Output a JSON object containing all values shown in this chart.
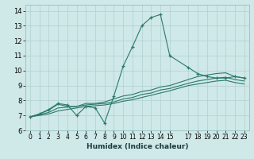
{
  "xlabel": "Humidex (Indice chaleur)",
  "xlim": [
    -0.5,
    23.5
  ],
  "ylim": [
    6,
    14.4
  ],
  "yticks": [
    6,
    7,
    8,
    9,
    10,
    11,
    12,
    13,
    14
  ],
  "xticks": [
    0,
    1,
    2,
    3,
    4,
    5,
    6,
    7,
    8,
    9,
    10,
    11,
    12,
    13,
    14,
    15,
    17,
    18,
    19,
    20,
    21,
    22,
    23
  ],
  "xtick_labels": [
    "0",
    "1",
    "2",
    "3",
    "4",
    "5",
    "6",
    "7",
    "8",
    "9",
    "10",
    "11",
    "12",
    "13",
    "14",
    "15",
    "17",
    "18",
    "19",
    "20",
    "21",
    "22",
    "23"
  ],
  "bg_color": "#cfe8e8",
  "grid_color": "#b0d0d0",
  "line_color": "#2a7a6a",
  "series": [
    {
      "x": [
        0,
        1,
        2,
        3,
        4,
        5,
        6,
        7,
        8,
        9,
        10,
        11,
        12,
        13,
        14,
        15,
        17,
        18,
        19,
        20,
        21,
        22,
        23
      ],
      "y": [
        6.9,
        7.1,
        7.4,
        7.8,
        7.7,
        7.0,
        7.6,
        7.5,
        6.5,
        8.3,
        10.3,
        11.6,
        13.0,
        13.55,
        13.75,
        11.0,
        10.2,
        9.8,
        9.6,
        9.5,
        9.5,
        9.6,
        9.5
      ],
      "marker": true
    },
    {
      "x": [
        0,
        1,
        2,
        3,
        4,
        5,
        6,
        7,
        8,
        9,
        10,
        11,
        12,
        13,
        14,
        15,
        17,
        18,
        19,
        20,
        21,
        22,
        23
      ],
      "y": [
        6.9,
        7.1,
        7.35,
        7.75,
        7.6,
        7.6,
        7.8,
        7.8,
        7.9,
        8.1,
        8.3,
        8.4,
        8.6,
        8.7,
        8.9,
        9.0,
        9.4,
        9.6,
        9.7,
        9.8,
        9.85,
        9.6,
        9.5
      ],
      "marker": false
    },
    {
      "x": [
        0,
        1,
        2,
        3,
        4,
        5,
        6,
        7,
        8,
        9,
        10,
        11,
        12,
        13,
        14,
        15,
        17,
        18,
        19,
        20,
        21,
        22,
        23
      ],
      "y": [
        6.9,
        7.05,
        7.2,
        7.5,
        7.55,
        7.6,
        7.7,
        7.75,
        7.8,
        7.9,
        8.1,
        8.2,
        8.4,
        8.5,
        8.7,
        8.8,
        9.15,
        9.3,
        9.4,
        9.5,
        9.55,
        9.4,
        9.3
      ],
      "marker": false
    },
    {
      "x": [
        0,
        1,
        2,
        3,
        4,
        5,
        6,
        7,
        8,
        9,
        10,
        11,
        12,
        13,
        14,
        15,
        17,
        18,
        19,
        20,
        21,
        22,
        23
      ],
      "y": [
        6.9,
        7.0,
        7.1,
        7.3,
        7.4,
        7.5,
        7.6,
        7.65,
        7.7,
        7.8,
        7.95,
        8.05,
        8.2,
        8.35,
        8.5,
        8.65,
        9.0,
        9.1,
        9.2,
        9.3,
        9.35,
        9.2,
        9.1
      ],
      "marker": false
    }
  ]
}
